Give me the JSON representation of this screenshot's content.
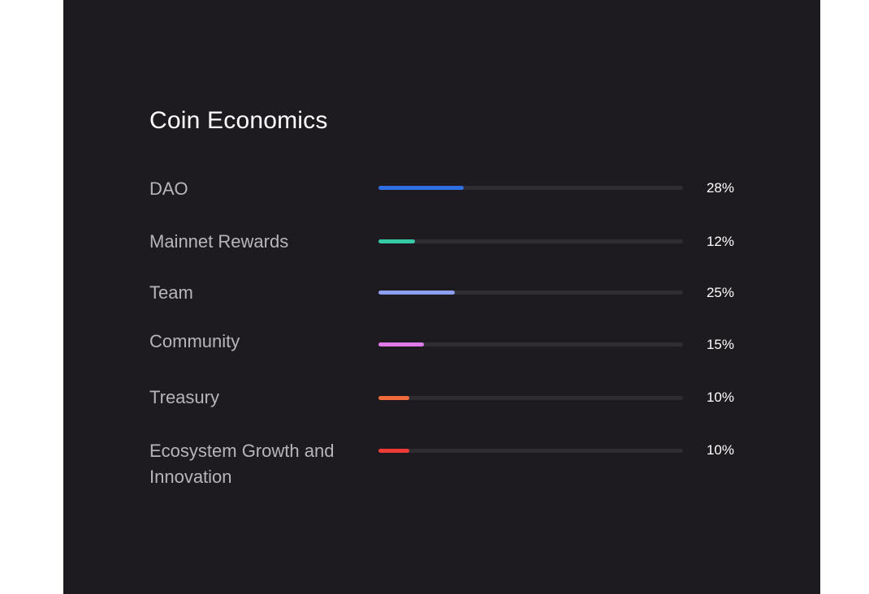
{
  "card": {
    "title": "Coin Economics"
  },
  "allocations": [
    {
      "label": "DAO",
      "percent_label": "28%",
      "percent": 28,
      "color": "#2f6fe6"
    },
    {
      "label": "Mainnet Rewards",
      "percent_label": "12%",
      "percent": 12,
      "color": "#36c9a8"
    },
    {
      "label": "Team",
      "percent_label": "25%",
      "percent": 25,
      "color": "#8d9ff2"
    },
    {
      "label": "Community",
      "percent_label": "15%",
      "percent": 15,
      "color": "#e07ae8"
    },
    {
      "label": "Treasury",
      "percent_label": "10%",
      "percent": 10,
      "color": "#f06a3a"
    },
    {
      "label": "Ecosystem Growth and Innovation",
      "percent_label": "10%",
      "percent": 10,
      "color": "#ee3b37"
    }
  ]
}
